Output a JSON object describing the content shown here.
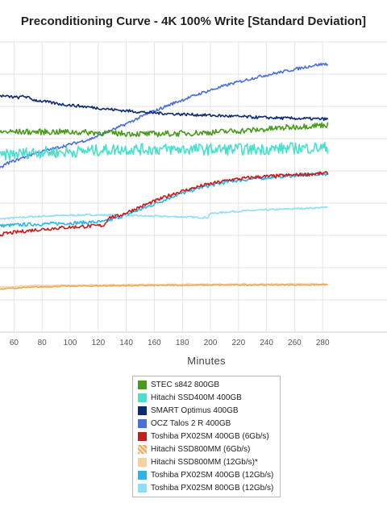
{
  "chart_data": {
    "type": "line",
    "title": "Preconditioning Curve - 4K 100% Write [Standard Deviation]",
    "xlabel": "Minutes",
    "ylabel": "",
    "xlim": [
      50,
      290
    ],
    "x_ticks": [
      60,
      80,
      100,
      120,
      140,
      160,
      180,
      200,
      220,
      240,
      260,
      280
    ],
    "grid": true,
    "legend_position": "bottom",
    "series": [
      {
        "name": "STEC s842 800GB",
        "color": "#4a9a1c",
        "points": [
          [
            50,
            0.62
          ],
          [
            53,
            0.62
          ],
          [
            55,
            0.69
          ],
          [
            60,
            0.69
          ],
          [
            80,
            0.69
          ],
          [
            100,
            0.69
          ],
          [
            120,
            0.688
          ],
          [
            140,
            0.685
          ],
          [
            160,
            0.683
          ],
          [
            180,
            0.684
          ],
          [
            200,
            0.687
          ],
          [
            220,
            0.692
          ],
          [
            240,
            0.697
          ],
          [
            260,
            0.705
          ],
          [
            280,
            0.712
          ],
          [
            290,
            0.715
          ]
        ],
        "noise": 0.01
      },
      {
        "name": "Hitachi SSD400M 400GB",
        "color": "#48e0cc",
        "points": [
          [
            50,
            0.595
          ],
          [
            60,
            0.61
          ],
          [
            80,
            0.62
          ],
          [
            100,
            0.62
          ],
          [
            120,
            0.625
          ],
          [
            140,
            0.63
          ],
          [
            160,
            0.63
          ],
          [
            180,
            0.63
          ],
          [
            200,
            0.63
          ],
          [
            220,
            0.63
          ],
          [
            240,
            0.63
          ],
          [
            260,
            0.633
          ],
          [
            280,
            0.635
          ],
          [
            290,
            0.635
          ]
        ],
        "noise": 0.02
      },
      {
        "name": "SMART Optimus 400GB",
        "color": "#0e2a72",
        "points": [
          [
            50,
            0.862
          ],
          [
            54,
            0.862
          ],
          [
            55,
            0.815
          ],
          [
            60,
            0.812
          ],
          [
            70,
            0.808
          ],
          [
            72,
            0.815
          ],
          [
            80,
            0.8
          ],
          [
            100,
            0.785
          ],
          [
            120,
            0.775
          ],
          [
            140,
            0.765
          ],
          [
            160,
            0.757
          ],
          [
            180,
            0.752
          ],
          [
            200,
            0.748
          ],
          [
            220,
            0.744
          ],
          [
            240,
            0.74
          ],
          [
            260,
            0.737
          ],
          [
            280,
            0.735
          ],
          [
            290,
            0.734
          ]
        ],
        "noise": 0.005
      },
      {
        "name": "OCZ Talos 2 R 400GB",
        "color": "#4a6ee0",
        "points": [
          [
            50,
            0.305
          ],
          [
            53,
            0.305
          ],
          [
            55,
            0.56
          ],
          [
            60,
            0.58
          ],
          [
            80,
            0.615
          ],
          [
            100,
            0.64
          ],
          [
            120,
            0.665
          ],
          [
            140,
            0.705
          ],
          [
            160,
            0.75
          ],
          [
            180,
            0.79
          ],
          [
            200,
            0.825
          ],
          [
            220,
            0.855
          ],
          [
            240,
            0.88
          ],
          [
            260,
            0.9
          ],
          [
            280,
            0.92
          ],
          [
            290,
            0.925
          ]
        ],
        "noise": 0.005
      },
      {
        "name": "Toshiba PX02SM 400GB (6Gb/s)",
        "color": "#c41e1e",
        "points": [
          [
            50,
            0.33
          ],
          [
            60,
            0.34
          ],
          [
            80,
            0.352
          ],
          [
            100,
            0.36
          ],
          [
            120,
            0.365
          ],
          [
            130,
            0.368
          ],
          [
            133,
            0.395
          ],
          [
            140,
            0.4
          ],
          [
            160,
            0.44
          ],
          [
            180,
            0.478
          ],
          [
            200,
            0.505
          ],
          [
            220,
            0.525
          ],
          [
            240,
            0.535
          ],
          [
            260,
            0.54
          ],
          [
            280,
            0.545
          ],
          [
            290,
            0.548
          ]
        ],
        "noise": 0.006
      },
      {
        "name": "Hitachi SSD800MM (6Gb/s)",
        "color": "#e8aa5a",
        "points": [
          [
            50,
            0.145
          ],
          [
            60,
            0.15
          ],
          [
            80,
            0.155
          ],
          [
            100,
            0.158
          ],
          [
            140,
            0.16
          ],
          [
            200,
            0.162
          ],
          [
            290,
            0.163
          ]
        ],
        "noise": 0.002
      },
      {
        "name": "Hitachi SSD800MM (12Gb/s)*",
        "color": "#f7d0a0",
        "points": [
          [
            50,
            0.152
          ],
          [
            60,
            0.156
          ],
          [
            80,
            0.16
          ],
          [
            120,
            0.163
          ],
          [
            200,
            0.165
          ],
          [
            290,
            0.166
          ]
        ],
        "noise": 0.002
      },
      {
        "name": "Toshiba PX02SM 400GB (12Gb/s)",
        "color": "#2cb4e8",
        "points": [
          [
            50,
            0.365
          ],
          [
            70,
            0.37
          ],
          [
            100,
            0.375
          ],
          [
            130,
            0.38
          ],
          [
            140,
            0.395
          ],
          [
            160,
            0.43
          ],
          [
            180,
            0.47
          ],
          [
            200,
            0.5
          ],
          [
            220,
            0.52
          ],
          [
            240,
            0.53
          ],
          [
            260,
            0.538
          ],
          [
            280,
            0.544
          ],
          [
            290,
            0.546
          ]
        ],
        "noise": 0.006
      },
      {
        "name": "Toshiba PX02SM 800GB (12Gb/s)",
        "color": "#8fdcfb",
        "points": [
          [
            50,
            0.385
          ],
          [
            60,
            0.392
          ],
          [
            80,
            0.398
          ],
          [
            100,
            0.402
          ],
          [
            120,
            0.404
          ],
          [
            140,
            0.403
          ],
          [
            160,
            0.4
          ],
          [
            180,
            0.398
          ],
          [
            200,
            0.395
          ],
          [
            204,
            0.395
          ],
          [
            205,
            0.408
          ],
          [
            220,
            0.415
          ],
          [
            240,
            0.42
          ],
          [
            260,
            0.424
          ],
          [
            280,
            0.428
          ],
          [
            290,
            0.43
          ]
        ],
        "noise": 0.003
      }
    ]
  },
  "legend_swatch_styles": {
    "Hitachi SSD800MM (6Gb/s)": "hatched"
  }
}
